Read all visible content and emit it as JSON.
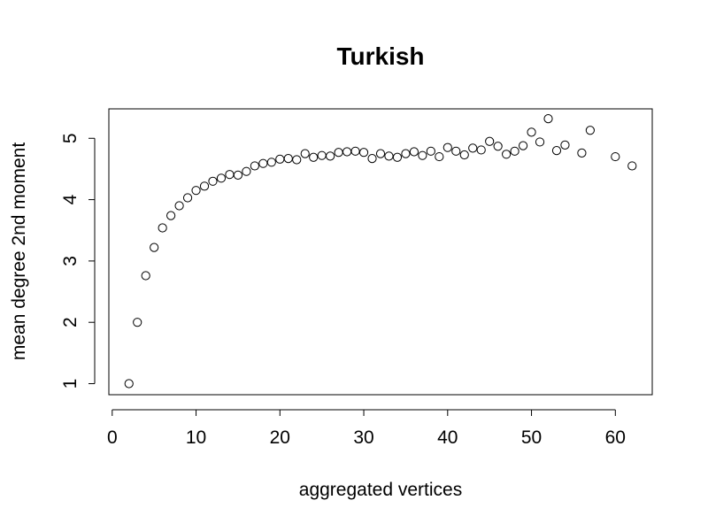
{
  "chart_data": {
    "type": "scatter",
    "title": "Turkish",
    "xlabel": "aggregated vertices",
    "ylabel": "mean degree 2nd moment",
    "xlim": [
      -0.4,
      64.4
    ],
    "ylim": [
      0.82,
      5.48
    ],
    "xticks": [
      0,
      10,
      20,
      30,
      40,
      50,
      60
    ],
    "yticks": [
      1,
      2,
      3,
      4,
      5
    ],
    "grid": false,
    "legend": "none",
    "marker": "open-circle",
    "x": [
      2,
      3,
      4,
      5,
      6,
      7,
      8,
      9,
      10,
      11,
      12,
      13,
      14,
      15,
      16,
      17,
      18,
      19,
      20,
      21,
      22,
      23,
      24,
      25,
      26,
      27,
      28,
      29,
      30,
      31,
      32,
      33,
      34,
      35,
      36,
      37,
      38,
      39,
      40,
      41,
      42,
      43,
      44,
      45,
      46,
      47,
      48,
      49,
      50,
      51,
      52,
      53,
      54,
      56,
      57,
      60,
      62
    ],
    "y": [
      1.0,
      2.0,
      2.76,
      3.22,
      3.54,
      3.74,
      3.9,
      4.03,
      4.15,
      4.22,
      4.3,
      4.35,
      4.41,
      4.4,
      4.46,
      4.55,
      4.59,
      4.61,
      4.66,
      4.67,
      4.65,
      4.75,
      4.69,
      4.72,
      4.71,
      4.77,
      4.78,
      4.79,
      4.77,
      4.67,
      4.75,
      4.71,
      4.69,
      4.75,
      4.78,
      4.72,
      4.79,
      4.7,
      4.85,
      4.79,
      4.73,
      4.84,
      4.81,
      4.95,
      4.87,
      4.74,
      4.79,
      4.88,
      5.1,
      4.94,
      5.32,
      4.8,
      4.89,
      4.76,
      5.13,
      4.7,
      4.55
    ]
  }
}
